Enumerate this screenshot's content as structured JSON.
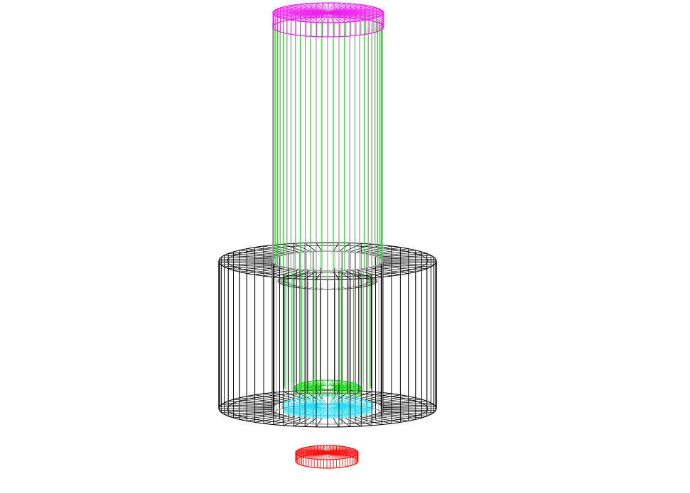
{
  "scene": {
    "type": "3d-wireframe",
    "background": "#ffffff",
    "parts": [
      {
        "id": "upper-rod",
        "color_primary": "#22dd22",
        "color_secondary": "#9a9a9a",
        "segments": 60
      },
      {
        "id": "top-cap",
        "color": "#ee22ee",
        "segments": 60
      },
      {
        "id": "outer-housing",
        "color": "#000000",
        "segments": 60
      },
      {
        "id": "inner-sleeve",
        "color_primary": "#111111",
        "color_secondary": "#9a9a9a",
        "segments": 48
      },
      {
        "id": "inner-rod",
        "color": "#22dd22",
        "segments": 40
      },
      {
        "id": "inner-pad-green",
        "color": "#22dd22",
        "segments": 40
      },
      {
        "id": "inner-pad-cyan",
        "color": "#22ddff",
        "segments": 40
      },
      {
        "id": "bottom-disk",
        "color": "#ff1111",
        "segments": 60
      }
    ]
  }
}
